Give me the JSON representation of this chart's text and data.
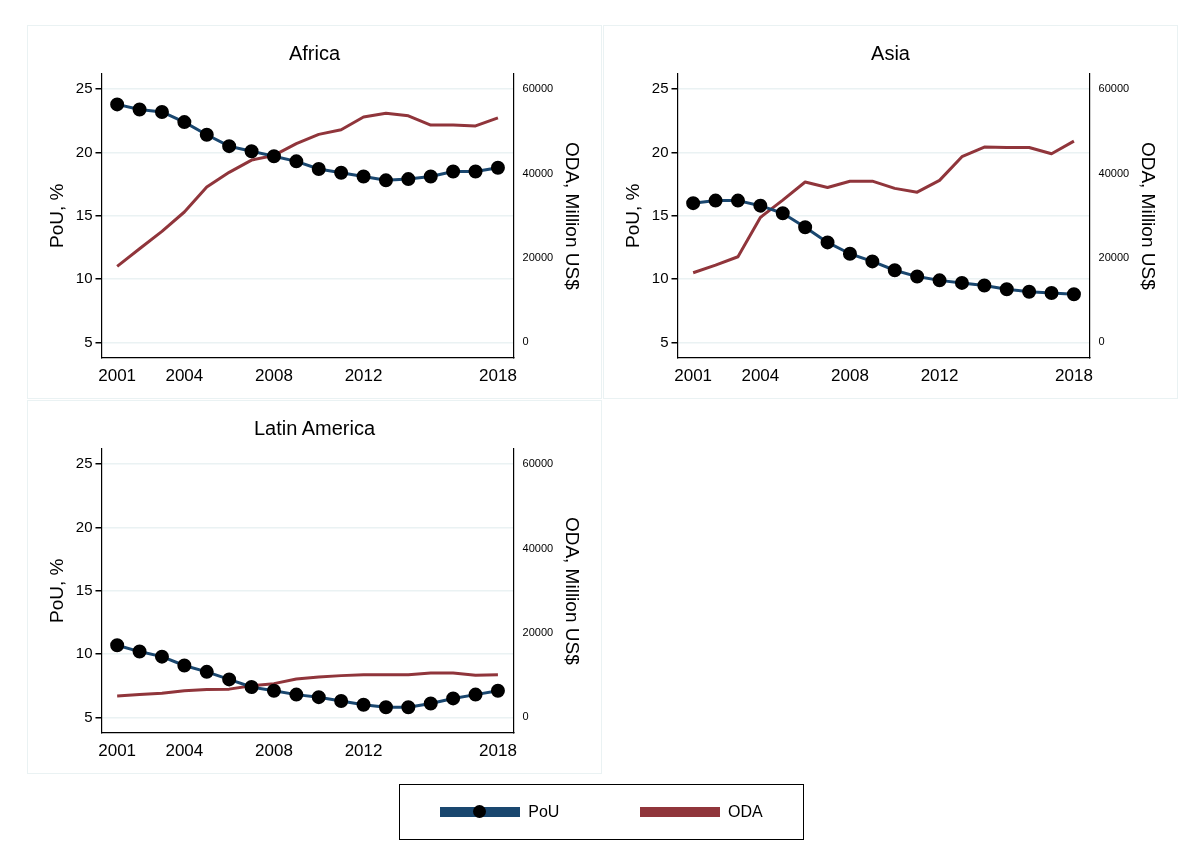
{
  "chart_data": [
    {
      "type": "line",
      "title": "Africa",
      "ylabel": "PoU, %",
      "y2label": "ODA, Million US$",
      "x": [
        2001,
        2002,
        2003,
        2004,
        2005,
        2006,
        2007,
        2008,
        2009,
        2010,
        2011,
        2012,
        2013,
        2014,
        2015,
        2016,
        2017,
        2018
      ],
      "xlim": [
        2000.3,
        2018.7
      ],
      "xticks": [
        2001,
        2004,
        2008,
        2012,
        2018
      ],
      "ylim": [
        3.8,
        26.2
      ],
      "yticks": [
        5,
        10,
        15,
        20,
        25
      ],
      "y2lim": [
        -3600,
        63600
      ],
      "y2ticks": [
        0,
        20000,
        40000,
        60000
      ],
      "grid": "y",
      "series": [
        {
          "color": "#1a476f",
          "marker": "circle",
          "values": [
            23.8,
            23.4,
            23.2,
            22.4,
            21.4,
            20.5,
            20.1,
            19.7,
            19.3,
            18.7,
            18.4,
            18.1,
            17.8,
            17.9,
            18.1,
            18.5,
            18.5,
            18.8
          ]
        },
        {
          "color": "#90353b",
          "marker": "none",
          "axis": "y2",
          "values": [
            18000,
            22200,
            26300,
            30900,
            36800,
            40300,
            43200,
            44300,
            47100,
            49300,
            50400,
            53400,
            54300,
            53700,
            51500,
            51500,
            51300,
            53200
          ]
        }
      ]
    },
    {
      "type": "line",
      "title": "Asia",
      "ylabel": "PoU, %",
      "y2label": "ODA, Million US$",
      "x": [
        2001,
        2002,
        2003,
        2004,
        2005,
        2006,
        2007,
        2008,
        2009,
        2010,
        2011,
        2012,
        2013,
        2014,
        2015,
        2016,
        2017,
        2018
      ],
      "xlim": [
        2000.3,
        2018.7
      ],
      "xticks": [
        2001,
        2004,
        2008,
        2012,
        2018
      ],
      "ylim": [
        3.8,
        26.2
      ],
      "yticks": [
        5,
        10,
        15,
        20,
        25
      ],
      "y2lim": [
        -3600,
        63600
      ],
      "y2ticks": [
        0,
        20000,
        40000,
        60000
      ],
      "grid": "y",
      "series": [
        {
          "color": "#1a476f",
          "marker": "circle",
          "values": [
            16.0,
            16.2,
            16.2,
            15.8,
            15.2,
            14.1,
            12.9,
            12.0,
            11.4,
            10.7,
            10.2,
            9.9,
            9.7,
            9.5,
            9.2,
            9.0,
            8.9,
            8.8
          ]
        },
        {
          "color": "#90353b",
          "marker": "none",
          "axis": "y2",
          "values": [
            16500,
            18300,
            20300,
            29600,
            33700,
            38000,
            36700,
            38200,
            38200,
            36500,
            35600,
            38400,
            44000,
            46300,
            46200,
            46200,
            44700,
            47700
          ]
        }
      ]
    },
    {
      "type": "line",
      "title": "Latin America",
      "ylabel": "PoU, %",
      "y2label": "ODA, Million US$",
      "x": [
        2001,
        2002,
        2003,
        2004,
        2005,
        2006,
        2007,
        2008,
        2009,
        2010,
        2011,
        2012,
        2013,
        2014,
        2015,
        2016,
        2017,
        2018
      ],
      "xlim": [
        2000.3,
        2018.7
      ],
      "xticks": [
        2001,
        2004,
        2008,
        2012,
        2018
      ],
      "ylim": [
        3.8,
        26.2
      ],
      "yticks": [
        5,
        10,
        15,
        20,
        25
      ],
      "y2lim": [
        -3600,
        63600
      ],
      "y2ticks": [
        0,
        20000,
        40000,
        60000
      ],
      "grid": "y",
      "legend": "bottom",
      "series": [
        {
          "name": "PoU",
          "color": "#1a476f",
          "marker": "circle",
          "values": [
            10.7,
            10.2,
            9.8,
            9.1,
            8.6,
            8.0,
            7.4,
            7.1,
            6.8,
            6.6,
            6.3,
            6.0,
            5.8,
            5.8,
            6.1,
            6.5,
            6.8,
            7.1
          ]
        },
        {
          "name": "ODA",
          "color": "#90353b",
          "marker": "none",
          "axis": "y2",
          "values": [
            5100,
            5400,
            5700,
            6300,
            6600,
            6700,
            7500,
            8000,
            9100,
            9600,
            9900,
            10100,
            10100,
            10100,
            10500,
            10500,
            10000,
            10100
          ]
        }
      ]
    }
  ]
}
